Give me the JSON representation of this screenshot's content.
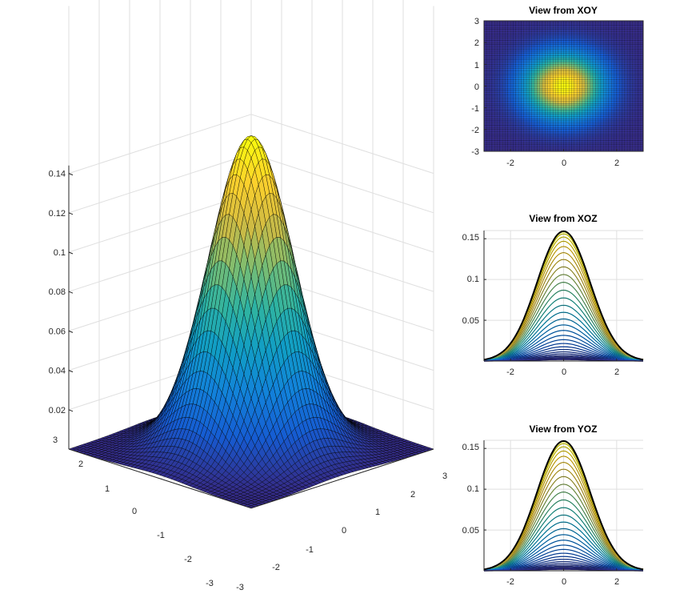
{
  "chart_data": [
    {
      "type": "surface3d",
      "function": "bivariate normal density, mean (0,0), sigma_x 1, sigma_y 1",
      "title": "",
      "x_range": [
        -3,
        3
      ],
      "y_range": [
        -3,
        3
      ],
      "z_range": [
        0,
        0.16
      ],
      "xticks": [
        "-3",
        "-2",
        "-1",
        "0",
        "1",
        "2",
        "3"
      ],
      "yticks": [
        "-3",
        "-2",
        "-1",
        "0",
        "1",
        "2",
        "3"
      ],
      "zticks": [
        "0.02",
        "0.04",
        "0.06",
        "0.08",
        "0.1",
        "0.12",
        "0.14"
      ],
      "peak_value": 0.159,
      "colormap": "parula",
      "grid": true
    },
    {
      "type": "heatmap",
      "title": "View from XOY",
      "x_range": [
        -3,
        3
      ],
      "y_range": [
        -3,
        3
      ],
      "xticks": [
        "-2",
        "0",
        "2"
      ],
      "yticks": [
        "3",
        "2",
        "1",
        "0",
        "-1",
        "-2",
        "-3"
      ],
      "colormap": "parula"
    },
    {
      "type": "line",
      "title": "View from XOZ",
      "x_range": [
        -3,
        3
      ],
      "ylim": [
        0,
        0.16
      ],
      "xticks": [
        "-2",
        "0",
        "2"
      ],
      "yticks": [
        "0.15",
        "0.1",
        "0.05"
      ],
      "peak_value": 0.159,
      "grid": true
    },
    {
      "type": "line",
      "title": "View from YOZ",
      "x_range": [
        -3,
        3
      ],
      "ylim": [
        0,
        0.16
      ],
      "xticks": [
        "-2",
        "0",
        "2"
      ],
      "yticks": [
        "0.15",
        "0.1",
        "0.05"
      ],
      "peak_value": 0.159,
      "grid": true
    }
  ]
}
